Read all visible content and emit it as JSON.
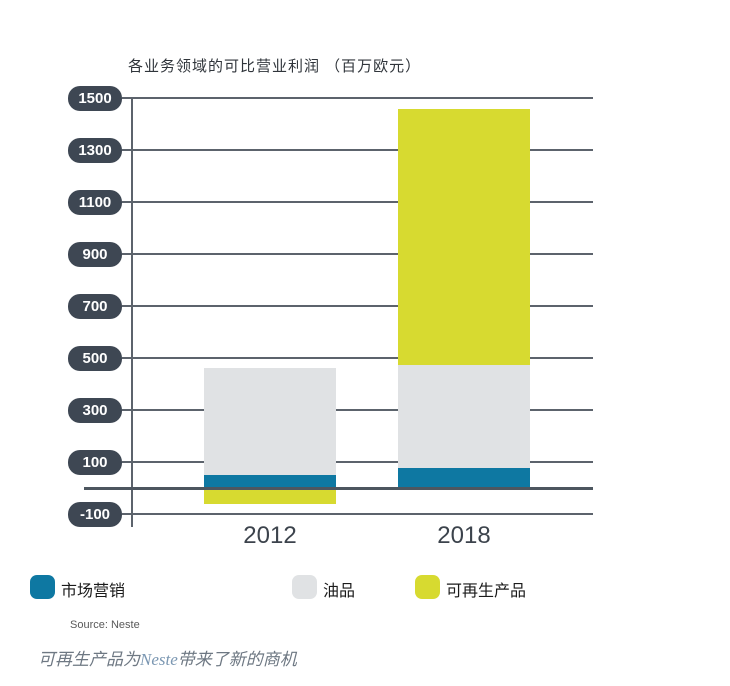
{
  "chart_data": {
    "type": "bar",
    "stacked": true,
    "title": "各业务领域的可比营业利润 （百万欧元）",
    "categories": [
      "2012",
      "2018"
    ],
    "series": [
      {
        "key": "marketing",
        "name": "市场营销",
        "color": "#0e78a2",
        "values": [
          50,
          77
        ]
      },
      {
        "key": "oil",
        "name": "油品",
        "color": "#e0e2e4",
        "values": [
          410,
          397
        ]
      },
      {
        "key": "renewables",
        "name": "可再生产品",
        "color": "#d7da30",
        "values": [
          -60,
          983
        ]
      }
    ],
    "xlabel": "",
    "ylabel": "",
    "ylim": [
      -100,
      1500
    ],
    "yticks": [
      1500,
      1300,
      1100,
      900,
      700,
      500,
      300,
      100,
      -100
    ],
    "grid": true,
    "legend_position": "bottom"
  },
  "source": "Source: Neste",
  "caption": {
    "prefix": "可再生产品为",
    "brand": "Neste",
    "suffix": "带来了新的商机"
  },
  "colors": {
    "marketing": "#0e78a2",
    "oil": "#e0e2e4",
    "renewables": "#d7da30",
    "tick_badge": "#3e4753",
    "gridline": "#5c636c",
    "zero_line": "#4d565f",
    "background": "#ffffff"
  }
}
